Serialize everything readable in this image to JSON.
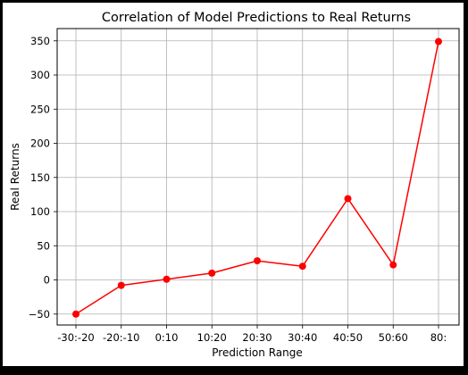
{
  "chart_data": {
    "type": "line",
    "title": "Correlation of Model Predictions to Real Returns",
    "xlabel": "Prediction Range",
    "ylabel": "Real Returns",
    "categories": [
      "-30:-20",
      "-20:-10",
      "0:10",
      "10:20",
      "20:30",
      "30:40",
      "40:50",
      "50:60",
      "80:"
    ],
    "values": [
      -50,
      -8,
      1,
      10,
      28,
      20,
      119,
      22,
      349
    ],
    "yticks": [
      -50,
      0,
      50,
      100,
      150,
      200,
      250,
      300,
      350
    ],
    "ylim": [
      -66,
      368
    ],
    "grid": true,
    "line_color": "#ff0000",
    "marker": "circle"
  }
}
